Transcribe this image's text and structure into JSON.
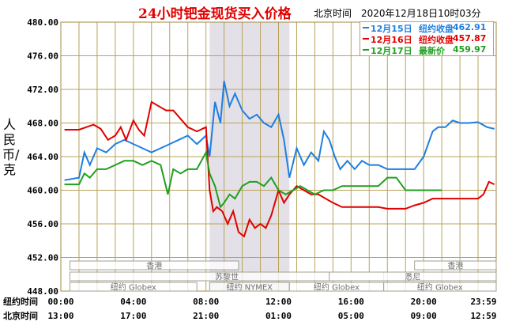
{
  "title": "24小时钯金现货买入价格",
  "timestamp": "北京时间　2020年12月18日10时03分",
  "ylabel": "人民币/克",
  "legend": [
    {
      "date": "12月15日",
      "label": "纽约收盘",
      "value": "462.91",
      "color": "#1e7fe0"
    },
    {
      "date": "12月16日",
      "label": "纽约收盘",
      "value": "457.87",
      "color": "#e00000"
    },
    {
      "date": "12月17日",
      "label": "最新价",
      "value": "459.97",
      "color": "#1fa01f"
    }
  ],
  "row_labels": {
    "ny": "纽约时间",
    "bj": "北京时间"
  },
  "chart_data": {
    "type": "line",
    "title": "24小时钯金现货买入价格",
    "ylabel": "人民币/克",
    "ylim": [
      448,
      480
    ],
    "yticks": [
      "448.00",
      "452.00",
      "456.00",
      "460.00",
      "464.00",
      "468.00",
      "472.00",
      "476.00",
      "480.00"
    ],
    "xlim": [
      0,
      24
    ],
    "xticks_ny": [
      "00:00",
      "04:00",
      "08:00",
      "12:00",
      "16:00",
      "20:00",
      "23:59"
    ],
    "xticks_bj": [
      "13:00",
      "17:00",
      "21:00",
      "01:00",
      "05:00",
      "09:00",
      "12:59"
    ],
    "grid": true,
    "shaded_range": [
      8.2,
      12.6
    ],
    "sessions": [
      {
        "label": "香港",
        "from": 0.5,
        "to": 9.8,
        "row": 0
      },
      {
        "label": "香港",
        "from": 19.5,
        "to": 24,
        "row": 0
      },
      {
        "label": "苏黎世",
        "from": 0.5,
        "to": 17.8,
        "row": 1
      },
      {
        "label": "悉尼",
        "from": 14.8,
        "to": 24,
        "row": 1
      },
      {
        "label": "纽约 Globex",
        "from": 0.5,
        "to": 7.5,
        "row": 2
      },
      {
        "label": "纽约 NYMEX",
        "from": 8.2,
        "to": 12.6,
        "row": 2
      },
      {
        "label": "纽约 Globex",
        "from": 12.6,
        "to": 17.8,
        "row": 2
      },
      {
        "label": "纽约 Globex",
        "from": 17.8,
        "to": 24,
        "row": 2
      }
    ],
    "series": [
      {
        "name": "12月15日",
        "color": "#1e7fe0",
        "x": [
          0.2,
          1.0,
          1.3,
          1.6,
          2.0,
          2.5,
          3.0,
          3.5,
          4.0,
          4.5,
          5.0,
          5.5,
          6.0,
          6.5,
          7.0,
          7.5,
          8.0,
          8.2,
          8.5,
          8.8,
          9.0,
          9.3,
          9.6,
          10.0,
          10.4,
          10.8,
          11.2,
          11.6,
          12.0,
          12.3,
          12.6,
          13.0,
          13.4,
          13.8,
          14.2,
          14.5,
          14.8,
          15.1,
          15.4,
          15.8,
          16.2,
          16.6,
          17.0,
          17.5,
          18.0,
          18.5,
          19.0,
          19.5,
          20.0,
          20.5,
          20.8,
          21.2,
          21.6,
          22.0,
          22.5,
          23.0,
          23.5,
          23.9
        ],
        "y": [
          461.2,
          461.5,
          464.5,
          463.0,
          465.0,
          464.5,
          465.5,
          466.0,
          465.5,
          465.0,
          464.5,
          465.0,
          465.5,
          466.0,
          466.5,
          465.5,
          466.5,
          464.0,
          470.5,
          468.0,
          473.0,
          470.0,
          471.5,
          469.5,
          468.5,
          469.0,
          468.0,
          467.5,
          469.0,
          466.0,
          461.5,
          465.0,
          463.0,
          464.5,
          463.5,
          467.0,
          466.0,
          464.0,
          462.5,
          463.5,
          462.5,
          463.5,
          463.0,
          463.0,
          462.5,
          462.5,
          462.5,
          462.5,
          464.0,
          467.0,
          467.5,
          467.5,
          468.3,
          468.0,
          468.0,
          468.1,
          467.5,
          467.3
        ]
      },
      {
        "name": "12月16日",
        "color": "#e00000",
        "x": [
          0.2,
          1.0,
          1.8,
          2.2,
          2.6,
          3.0,
          3.3,
          3.6,
          4.0,
          4.3,
          4.6,
          5.0,
          5.4,
          5.8,
          6.2,
          6.6,
          7.0,
          7.5,
          8.0,
          8.2,
          8.4,
          8.6,
          8.9,
          9.2,
          9.5,
          9.8,
          10.1,
          10.4,
          10.7,
          11.0,
          11.3,
          11.6,
          12.0,
          12.3,
          12.6,
          13.0,
          13.4,
          13.8,
          14.2,
          14.6,
          15.0,
          15.5,
          16.0,
          16.5,
          17.0,
          17.5,
          18.0,
          18.5,
          19.0,
          19.5,
          20.0,
          20.5,
          21.0,
          21.5,
          22.0,
          22.5,
          23.0,
          23.3,
          23.6,
          23.9
        ],
        "y": [
          467.2,
          467.2,
          467.8,
          467.3,
          466.0,
          466.5,
          467.5,
          466.0,
          468.3,
          467.2,
          466.5,
          470.5,
          470.0,
          469.5,
          469.5,
          468.5,
          467.5,
          467.0,
          467.5,
          460.0,
          457.5,
          458.0,
          457.5,
          456.0,
          457.5,
          455.0,
          454.5,
          456.5,
          455.5,
          456.0,
          455.5,
          457.0,
          460.0,
          458.5,
          459.5,
          460.5,
          460.0,
          459.5,
          459.5,
          459.0,
          458.5,
          458.0,
          458.0,
          458.0,
          458.0,
          458.0,
          457.8,
          457.8,
          457.8,
          458.2,
          458.5,
          459.0,
          459.0,
          459.0,
          459.0,
          459.0,
          459.0,
          459.5,
          461.0,
          460.7
        ]
      },
      {
        "name": "12月17日",
        "color": "#1fa01f",
        "x": [
          0.2,
          1.0,
          1.3,
          1.6,
          2.0,
          2.5,
          3.0,
          3.5,
          4.0,
          4.5,
          5.0,
          5.5,
          5.9,
          6.2,
          6.6,
          7.0,
          7.5,
          8.0,
          8.2,
          8.5,
          8.8,
          9.0,
          9.3,
          9.6,
          10.0,
          10.4,
          10.8,
          11.2,
          11.6,
          12.0,
          12.4,
          12.8,
          13.2,
          13.6,
          14.0,
          14.5,
          15.0,
          15.5,
          16.0,
          16.5,
          17.0,
          17.5,
          18.0,
          18.5,
          19.0,
          19.5,
          20.0,
          20.5,
          21.0
        ],
        "y": [
          460.7,
          460.7,
          462.0,
          461.5,
          462.5,
          462.5,
          463.0,
          463.5,
          463.5,
          463.0,
          463.5,
          463.0,
          459.5,
          462.5,
          462.0,
          462.5,
          462.5,
          464.5,
          462.0,
          460.5,
          458.0,
          458.5,
          459.5,
          459.0,
          460.5,
          461.0,
          461.0,
          460.5,
          461.5,
          460.0,
          459.5,
          460.0,
          460.5,
          460.0,
          459.5,
          460.0,
          460.0,
          460.5,
          460.5,
          460.5,
          460.5,
          460.5,
          461.5,
          461.5,
          460.0,
          460.0,
          460.0,
          460.0,
          460.0
        ]
      }
    ]
  }
}
